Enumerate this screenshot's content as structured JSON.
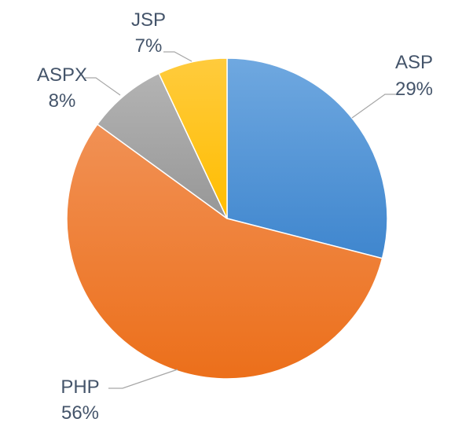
{
  "chart_data": {
    "type": "pie",
    "title": "",
    "slices": [
      {
        "label": "ASP",
        "value": 29,
        "value_label": "29%",
        "color": "#5b9bd5"
      },
      {
        "label": "PHP",
        "value": 56,
        "value_label": "56%",
        "color": "#ed7d31"
      },
      {
        "label": "ASPX",
        "value": 8,
        "value_label": "8%",
        "color": "#a5a5a5"
      },
      {
        "label": "JSP",
        "value": 7,
        "value_label": "7%",
        "color": "#ffc000"
      }
    ],
    "start": "12 o'clock",
    "direction": "clockwise",
    "legend": "none",
    "data_labels": "outside with leader lines"
  }
}
